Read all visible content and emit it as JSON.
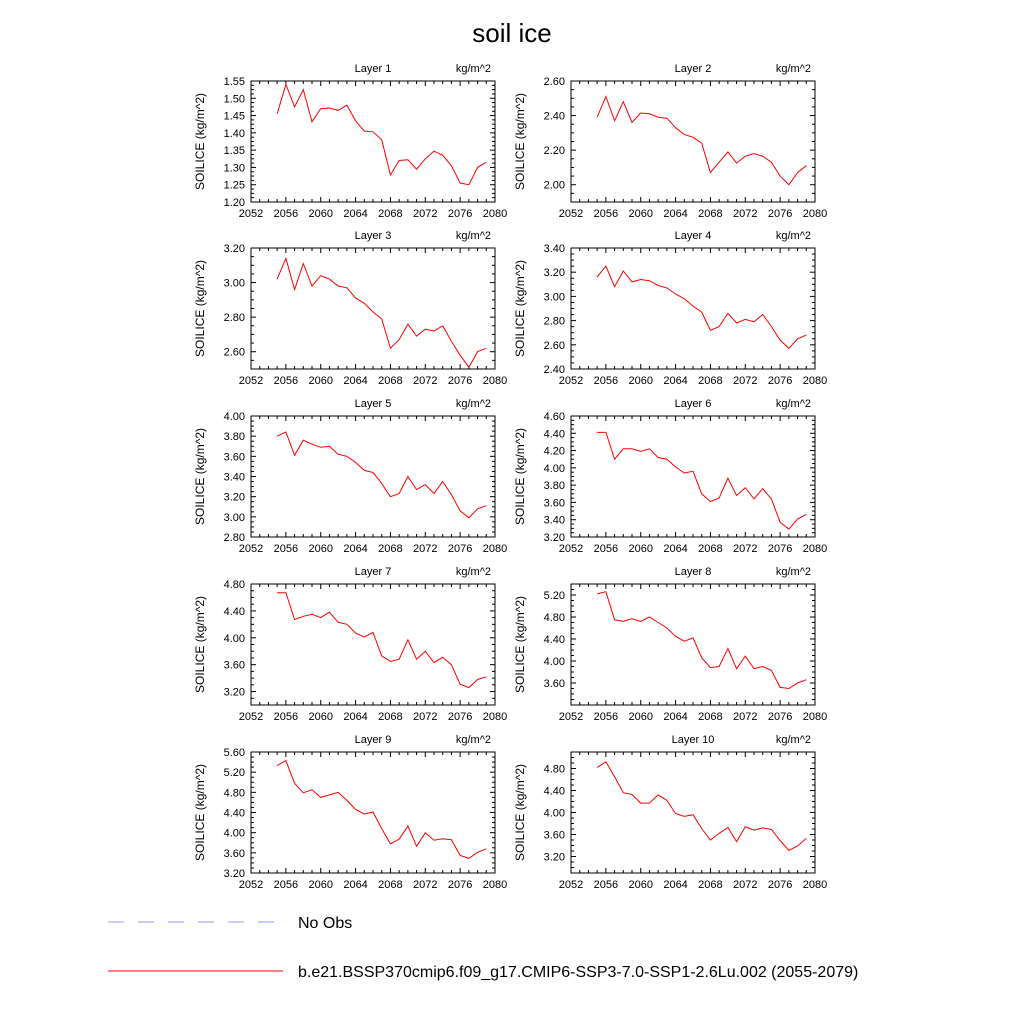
{
  "title": "soil ice",
  "legend": [
    {
      "label": "No Obs",
      "color": "#9999ff",
      "dash": true
    },
    {
      "label": "b.e21.BSSP370cmip6.f09_g17.CMIP6-SSP3-7.0-SSP1-2.6Lu.002 (2055-2079)",
      "color": "#ff0000",
      "dash": false
    }
  ],
  "chart_data": [
    {
      "type": "line",
      "title": "Layer 1",
      "units": "kg/m^2",
      "ylabel": "SOILICE  (kg/m^2)",
      "xlim": [
        2052,
        2080
      ],
      "xticks": [
        2052,
        2056,
        2060,
        2064,
        2068,
        2072,
        2076,
        2080
      ],
      "ylim": [
        1.2,
        1.55
      ],
      "yticks": [
        1.2,
        1.25,
        1.3,
        1.35,
        1.4,
        1.45,
        1.5,
        1.55
      ],
      "x": [
        2055,
        2056,
        2057,
        2058,
        2059,
        2060,
        2061,
        2062,
        2063,
        2064,
        2065,
        2066,
        2067,
        2068,
        2069,
        2070,
        2071,
        2072,
        2073,
        2074,
        2075,
        2076,
        2077,
        2078,
        2079
      ],
      "series": [
        {
          "color": "#ff0000",
          "values": [
            1.455,
            1.54,
            1.475,
            1.525,
            1.432,
            1.47,
            1.472,
            1.465,
            1.48,
            1.435,
            1.405,
            1.403,
            1.38,
            1.278,
            1.32,
            1.322,
            1.295,
            1.325,
            1.347,
            1.335,
            1.305,
            1.255,
            1.25,
            1.3,
            1.315
          ]
        }
      ]
    },
    {
      "type": "line",
      "title": "Layer 2",
      "units": "kg/m^2",
      "ylabel": "SOILICE  (kg/m^2)",
      "xlim": [
        2052,
        2080
      ],
      "xticks": [
        2052,
        2056,
        2060,
        2064,
        2068,
        2072,
        2076,
        2080
      ],
      "ylim": [
        1.9,
        2.6
      ],
      "yticks": [
        2.0,
        2.2,
        2.4,
        2.6
      ],
      "x": [
        2055,
        2056,
        2057,
        2058,
        2059,
        2060,
        2061,
        2062,
        2063,
        2064,
        2065,
        2066,
        2067,
        2068,
        2069,
        2070,
        2071,
        2072,
        2073,
        2074,
        2075,
        2076,
        2077,
        2078,
        2079
      ],
      "series": [
        {
          "color": "#ff0000",
          "values": [
            2.39,
            2.51,
            2.37,
            2.48,
            2.36,
            2.415,
            2.41,
            2.39,
            2.385,
            2.33,
            2.29,
            2.275,
            2.24,
            2.07,
            2.13,
            2.19,
            2.125,
            2.165,
            2.18,
            2.165,
            2.13,
            2.05,
            2.0,
            2.07,
            2.11
          ]
        }
      ]
    },
    {
      "type": "line",
      "title": "Layer 3",
      "units": "kg/m^2",
      "ylabel": "SOILICE  (kg/m^2)",
      "xlim": [
        2052,
        2080
      ],
      "xticks": [
        2052,
        2056,
        2060,
        2064,
        2068,
        2072,
        2076,
        2080
      ],
      "ylim": [
        2.5,
        3.2
      ],
      "yticks": [
        2.6,
        2.8,
        3.0,
        3.2
      ],
      "x": [
        2055,
        2056,
        2057,
        2058,
        2059,
        2060,
        2061,
        2062,
        2063,
        2064,
        2065,
        2066,
        2067,
        2068,
        2069,
        2070,
        2071,
        2072,
        2073,
        2074,
        2075,
        2076,
        2077,
        2078,
        2079
      ],
      "series": [
        {
          "color": "#ff0000",
          "values": [
            3.02,
            3.14,
            2.96,
            3.11,
            2.98,
            3.04,
            3.02,
            2.98,
            2.97,
            2.91,
            2.88,
            2.83,
            2.79,
            2.62,
            2.67,
            2.76,
            2.69,
            2.73,
            2.72,
            2.75,
            2.66,
            2.58,
            2.51,
            2.6,
            2.62
          ]
        }
      ]
    },
    {
      "type": "line",
      "title": "Layer 4",
      "units": "kg/m^2",
      "ylabel": "SOILICE  (kg/m^2)",
      "xlim": [
        2052,
        2080
      ],
      "xticks": [
        2052,
        2056,
        2060,
        2064,
        2068,
        2072,
        2076,
        2080
      ],
      "ylim": [
        2.4,
        3.4
      ],
      "yticks": [
        2.4,
        2.6,
        2.8,
        3.0,
        3.2,
        3.4
      ],
      "x": [
        2055,
        2056,
        2057,
        2058,
        2059,
        2060,
        2061,
        2062,
        2063,
        2064,
        2065,
        2066,
        2067,
        2068,
        2069,
        2070,
        2071,
        2072,
        2073,
        2074,
        2075,
        2076,
        2077,
        2078,
        2079
      ],
      "series": [
        {
          "color": "#ff0000",
          "values": [
            3.16,
            3.25,
            3.08,
            3.21,
            3.12,
            3.14,
            3.13,
            3.09,
            3.07,
            3.02,
            2.98,
            2.92,
            2.87,
            2.72,
            2.75,
            2.86,
            2.78,
            2.81,
            2.79,
            2.85,
            2.75,
            2.64,
            2.57,
            2.65,
            2.68
          ]
        }
      ]
    },
    {
      "type": "line",
      "title": "Layer 5",
      "units": "kg/m^2",
      "ylabel": "SOILICE  (kg/m^2)",
      "xlim": [
        2052,
        2080
      ],
      "xticks": [
        2052,
        2056,
        2060,
        2064,
        2068,
        2072,
        2076,
        2080
      ],
      "ylim": [
        2.8,
        4.0
      ],
      "yticks": [
        2.8,
        3.0,
        3.2,
        3.4,
        3.6,
        3.8,
        4.0
      ],
      "x": [
        2055,
        2056,
        2057,
        2058,
        2059,
        2060,
        2061,
        2062,
        2063,
        2064,
        2065,
        2066,
        2067,
        2068,
        2069,
        2070,
        2071,
        2072,
        2073,
        2074,
        2075,
        2076,
        2077,
        2078,
        2079
      ],
      "series": [
        {
          "color": "#ff0000",
          "values": [
            3.8,
            3.84,
            3.61,
            3.76,
            3.72,
            3.69,
            3.7,
            3.62,
            3.6,
            3.54,
            3.46,
            3.44,
            3.33,
            3.2,
            3.23,
            3.4,
            3.27,
            3.32,
            3.23,
            3.35,
            3.22,
            3.06,
            2.99,
            3.08,
            3.11
          ]
        }
      ]
    },
    {
      "type": "line",
      "title": "Layer 6",
      "units": "kg/m^2",
      "ylabel": "SOILICE  (kg/m^2)",
      "xlim": [
        2052,
        2080
      ],
      "xticks": [
        2052,
        2056,
        2060,
        2064,
        2068,
        2072,
        2076,
        2080
      ],
      "ylim": [
        3.2,
        4.6
      ],
      "yticks": [
        3.2,
        3.4,
        3.6,
        3.8,
        4.0,
        4.2,
        4.4,
        4.6
      ],
      "x": [
        2055,
        2056,
        2057,
        2058,
        2059,
        2060,
        2061,
        2062,
        2063,
        2064,
        2065,
        2066,
        2067,
        2068,
        2069,
        2070,
        2071,
        2072,
        2073,
        2074,
        2075,
        2076,
        2077,
        2078,
        2079
      ],
      "series": [
        {
          "color": "#ff0000",
          "values": [
            4.41,
            4.41,
            4.1,
            4.22,
            4.22,
            4.19,
            4.22,
            4.12,
            4.1,
            4.01,
            3.94,
            3.96,
            3.7,
            3.61,
            3.65,
            3.88,
            3.68,
            3.77,
            3.64,
            3.76,
            3.64,
            3.37,
            3.29,
            3.41,
            3.46
          ]
        }
      ]
    },
    {
      "type": "line",
      "title": "Layer 7",
      "units": "kg/m^2",
      "ylabel": "SOILICE  (kg/m^2)",
      "xlim": [
        2052,
        2080
      ],
      "xticks": [
        2052,
        2056,
        2060,
        2064,
        2068,
        2072,
        2076,
        2080
      ],
      "ylim": [
        3.0,
        4.8
      ],
      "yticks": [
        3.2,
        3.6,
        4.0,
        4.4,
        4.8
      ],
      "x": [
        2055,
        2056,
        2057,
        2058,
        2059,
        2060,
        2061,
        2062,
        2063,
        2064,
        2065,
        2066,
        2067,
        2068,
        2069,
        2070,
        2071,
        2072,
        2073,
        2074,
        2075,
        2076,
        2077,
        2078,
        2079
      ],
      "series": [
        {
          "color": "#ff0000",
          "values": [
            4.67,
            4.67,
            4.27,
            4.32,
            4.35,
            4.3,
            4.38,
            4.23,
            4.2,
            4.07,
            4.01,
            4.08,
            3.73,
            3.65,
            3.68,
            3.97,
            3.68,
            3.8,
            3.63,
            3.71,
            3.6,
            3.31,
            3.26,
            3.38,
            3.42
          ]
        }
      ]
    },
    {
      "type": "line",
      "title": "Layer 8",
      "units": "kg/m^2",
      "ylabel": "SOILICE  (kg/m^2)",
      "xlim": [
        2052,
        2080
      ],
      "xticks": [
        2052,
        2056,
        2060,
        2064,
        2068,
        2072,
        2076,
        2080
      ],
      "ylim": [
        3.2,
        5.4
      ],
      "yticks": [
        3.6,
        4.0,
        4.4,
        4.8,
        5.2
      ],
      "x": [
        2055,
        2056,
        2057,
        2058,
        2059,
        2060,
        2061,
        2062,
        2063,
        2064,
        2065,
        2066,
        2067,
        2068,
        2069,
        2070,
        2071,
        2072,
        2073,
        2074,
        2075,
        2076,
        2077,
        2078,
        2079
      ],
      "series": [
        {
          "color": "#ff0000",
          "values": [
            5.22,
            5.26,
            4.75,
            4.72,
            4.77,
            4.72,
            4.8,
            4.7,
            4.6,
            4.45,
            4.36,
            4.42,
            4.06,
            3.88,
            3.9,
            4.23,
            3.86,
            4.09,
            3.86,
            3.9,
            3.83,
            3.52,
            3.5,
            3.6,
            3.66
          ]
        }
      ]
    },
    {
      "type": "line",
      "title": "Layer 9",
      "units": "kg/m^2",
      "ylabel": "SOILICE  (kg/m^2)",
      "xlim": [
        2052,
        2080
      ],
      "xticks": [
        2052,
        2056,
        2060,
        2064,
        2068,
        2072,
        2076,
        2080
      ],
      "ylim": [
        3.2,
        5.6
      ],
      "yticks": [
        3.2,
        3.6,
        4.0,
        4.4,
        4.8,
        5.2,
        5.6
      ],
      "x": [
        2055,
        2056,
        2057,
        2058,
        2059,
        2060,
        2061,
        2062,
        2063,
        2064,
        2065,
        2066,
        2067,
        2068,
        2069,
        2070,
        2071,
        2072,
        2073,
        2074,
        2075,
        2076,
        2077,
        2078,
        2079
      ],
      "series": [
        {
          "color": "#ff0000",
          "values": [
            5.33,
            5.43,
            4.98,
            4.79,
            4.85,
            4.7,
            4.75,
            4.8,
            4.64,
            4.46,
            4.37,
            4.41,
            4.08,
            3.78,
            3.87,
            4.13,
            3.73,
            4.0,
            3.85,
            3.88,
            3.86,
            3.55,
            3.49,
            3.61,
            3.68
          ]
        }
      ]
    },
    {
      "type": "line",
      "title": "Layer 10",
      "units": "kg/m^2",
      "ylabel": "SOILICE  (kg/m^2)",
      "xlim": [
        2052,
        2080
      ],
      "xticks": [
        2052,
        2056,
        2060,
        2064,
        2068,
        2072,
        2076,
        2080
      ],
      "ylim": [
        2.9,
        5.1
      ],
      "yticks": [
        3.2,
        3.6,
        4.0,
        4.4,
        4.8
      ],
      "x": [
        2055,
        2056,
        2057,
        2058,
        2059,
        2060,
        2061,
        2062,
        2063,
        2064,
        2065,
        2066,
        2067,
        2068,
        2069,
        2070,
        2071,
        2072,
        2073,
        2074,
        2075,
        2076,
        2077,
        2078,
        2079
      ],
      "series": [
        {
          "color": "#ff0000",
          "values": [
            4.82,
            4.92,
            4.65,
            4.36,
            4.33,
            4.17,
            4.17,
            4.32,
            4.22,
            3.98,
            3.93,
            3.96,
            3.71,
            3.5,
            3.62,
            3.73,
            3.47,
            3.74,
            3.68,
            3.72,
            3.69,
            3.49,
            3.31,
            3.39,
            3.53
          ]
        }
      ]
    }
  ]
}
